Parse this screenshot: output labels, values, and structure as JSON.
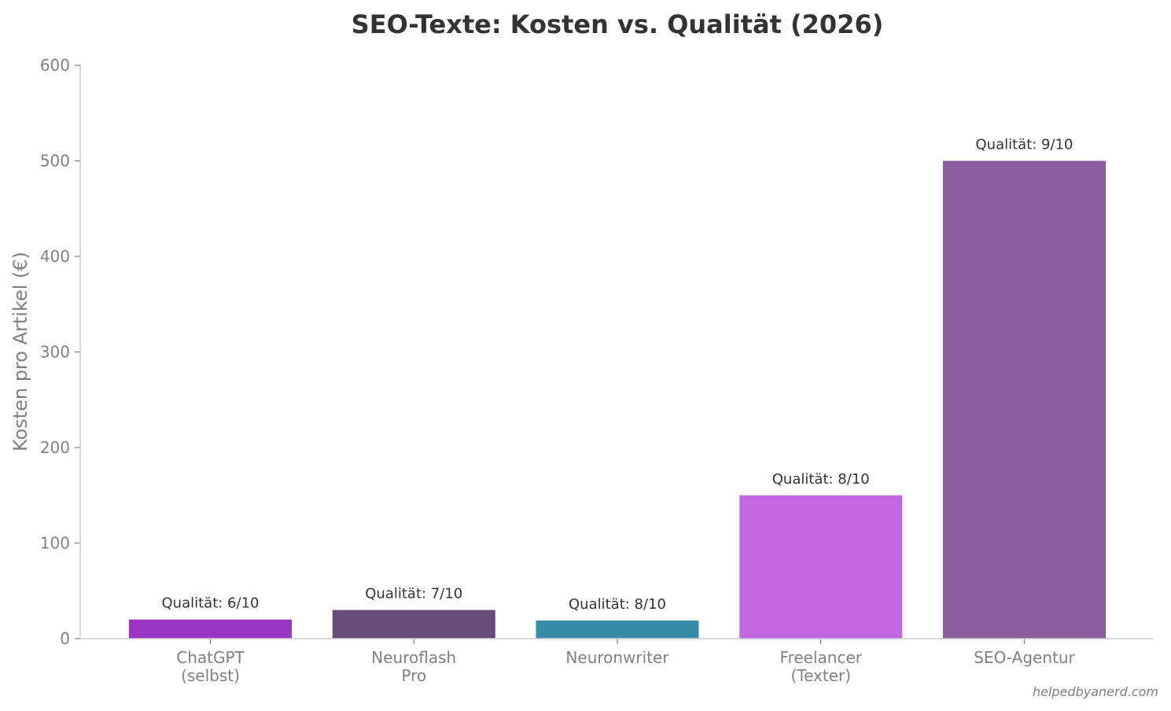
{
  "chart_data": {
    "type": "bar",
    "title": "SEO-Texte: Kosten vs. Qualität (2026)",
    "ylabel": "Kosten pro Artikel (€)",
    "xlabel": "",
    "ylim": [
      0,
      600
    ],
    "yticks": [
      0,
      100,
      200,
      300,
      400,
      500,
      600
    ],
    "grid": false,
    "categories": [
      [
        "ChatGPT",
        "(selbst)"
      ],
      [
        "Neuroflash",
        "Pro"
      ],
      [
        "Neuronwriter"
      ],
      [
        "Freelancer",
        "(Texter)"
      ],
      [
        "SEO-Agentur"
      ]
    ],
    "values": [
      20,
      30,
      19,
      150,
      500
    ],
    "colors": [
      "#9b35c4",
      "#6a4a78",
      "#3a8aaa",
      "#c267e2",
      "#8c5c9e"
    ],
    "data_labels": [
      "Qualität: 6/10",
      "Qualität: 7/10",
      "Qualität: 8/10",
      "Qualität: 8/10",
      "Qualität: 9/10"
    ]
  },
  "credit": "helpedbyanerd.com"
}
